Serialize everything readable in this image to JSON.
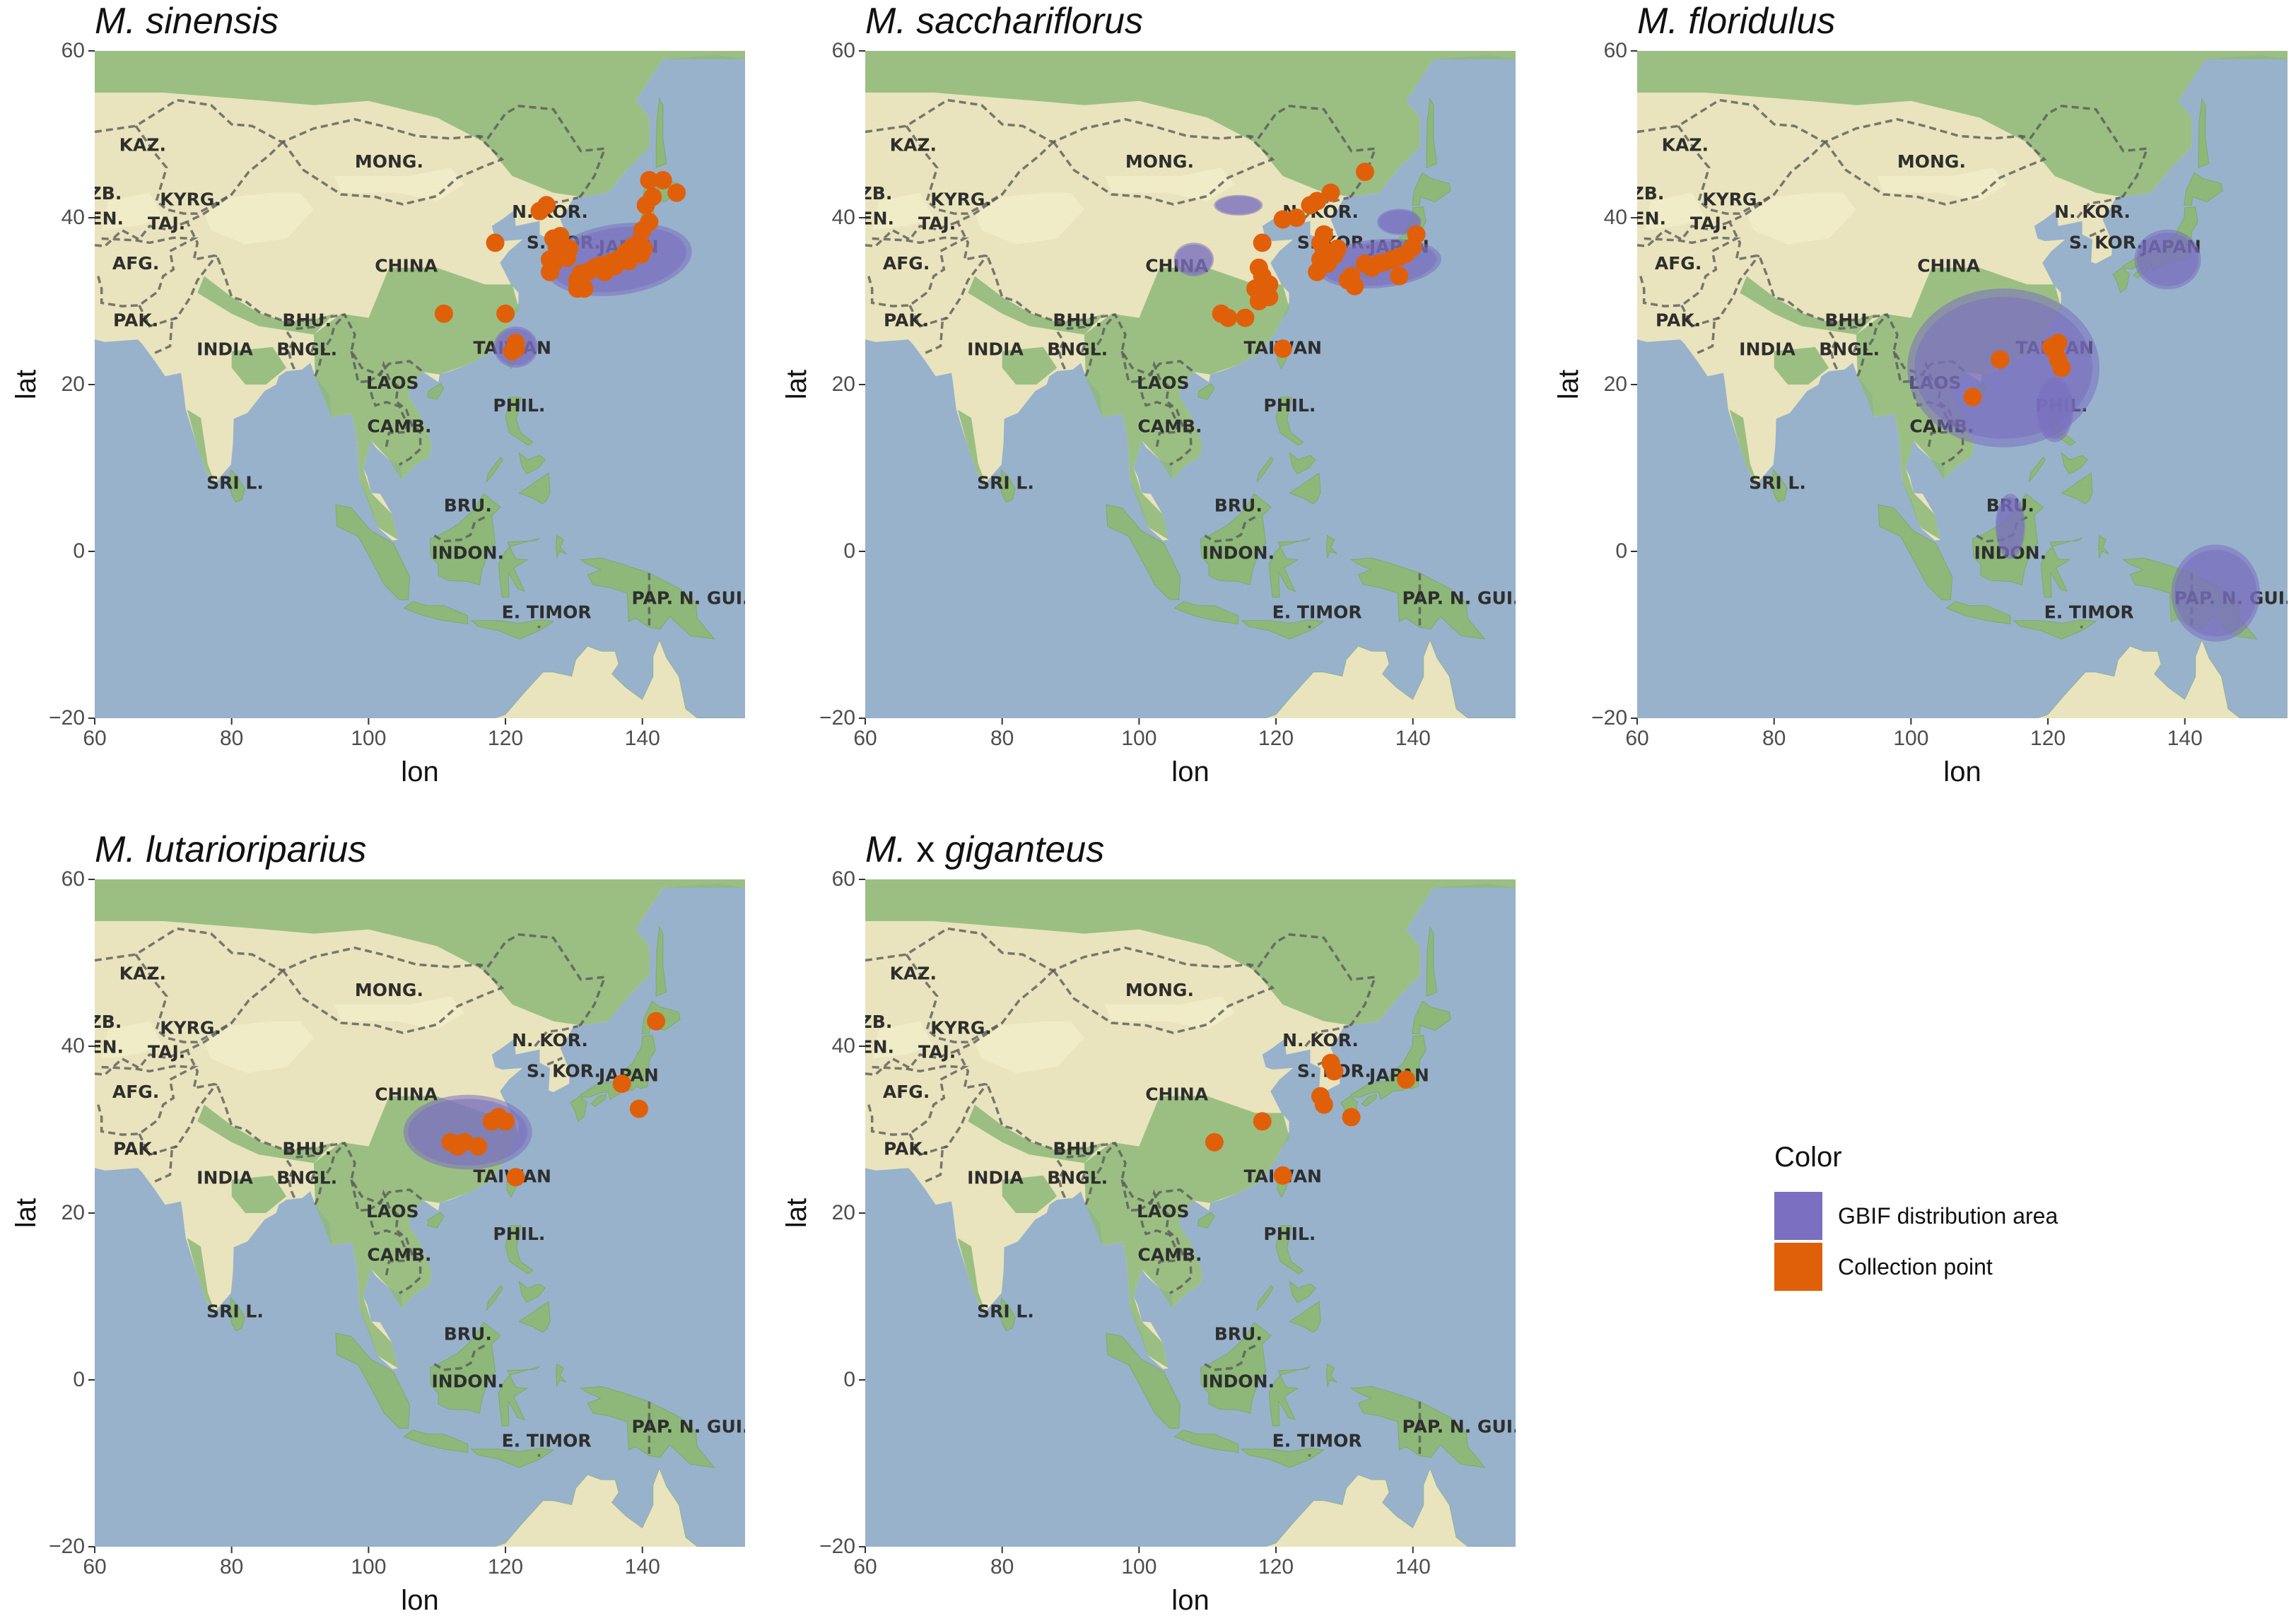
{
  "colors": {
    "ocean": "#98b2cc",
    "land": "#e9e4bd",
    "forest": "#8db879",
    "desert": "#f1ecc8",
    "border": "#5a5a5a",
    "gbif": "#7a6fc0",
    "collection": "#e0600a"
  },
  "axes": {
    "xlabel": "lon",
    "ylabel": "lat",
    "xticks": [
      60,
      80,
      100,
      120,
      140
    ],
    "yticks": [
      60,
      40,
      20,
      0,
      -20
    ],
    "xlim": [
      60,
      155
    ],
    "ylim": [
      -20,
      60
    ]
  },
  "country_labels": [
    {
      "text": "KAZ.",
      "lon": 67,
      "lat": 48
    },
    {
      "text": "MONG.",
      "lon": 103,
      "lat": 46
    },
    {
      "text": "UZB.",
      "lon": 60.5,
      "lat": 42.2
    },
    {
      "text": "KYRG.",
      "lon": 74,
      "lat": 41.5
    },
    {
      "text": "MEN.",
      "lon": 60.5,
      "lat": 39.2
    },
    {
      "text": "TAJ.",
      "lon": 70.5,
      "lat": 38.6
    },
    {
      "text": "AFG.",
      "lon": 66,
      "lat": 33.8
    },
    {
      "text": "CHINA",
      "lon": 105.5,
      "lat": 33.5
    },
    {
      "text": "N. KOR.",
      "lon": 126.5,
      "lat": 40
    },
    {
      "text": "S. KOR.",
      "lon": 128.5,
      "lat": 36.3
    },
    {
      "text": "JAPAN",
      "lon": 138,
      "lat": 35.8
    },
    {
      "text": "PAK.",
      "lon": 66,
      "lat": 27
    },
    {
      "text": "BHU.",
      "lon": 91,
      "lat": 27
    },
    {
      "text": "BNGL.",
      "lon": 91,
      "lat": 23.5
    },
    {
      "text": "INDIA",
      "lon": 79,
      "lat": 23.5
    },
    {
      "text": "TAIWAN",
      "lon": 121,
      "lat": 23.7
    },
    {
      "text": "LAOS",
      "lon": 103.5,
      "lat": 19.5
    },
    {
      "text": "PHIL.",
      "lon": 122,
      "lat": 16.8
    },
    {
      "text": "CAMB.",
      "lon": 104.5,
      "lat": 14.3
    },
    {
      "text": "SRI L.",
      "lon": 80.5,
      "lat": 7.5
    },
    {
      "text": "BRU.",
      "lon": 114.5,
      "lat": 4.8
    },
    {
      "text": "INDON.",
      "lon": 114.5,
      "lat": -0.9
    },
    {
      "text": "E. TIMOR",
      "lon": 126,
      "lat": -8
    },
    {
      "text": "PAP. N. GUI.",
      "lon": 147,
      "lat": -6.3
    }
  ],
  "panels": [
    {
      "title_italic_1": "M.",
      "title_upright": "",
      "title_italic_2": "sinensis",
      "gbif_areas": [
        {
          "lon": 136.5,
          "lat": 35,
          "rlon": 10,
          "rlat": 3.8,
          "rot": -8
        },
        {
          "lon": 121.5,
          "lat": 24.5,
          "rlon": 3,
          "rlat": 2.2,
          "rot": 0
        }
      ],
      "collection_points": [
        [
          141,
          44.5
        ],
        [
          143,
          44.5
        ],
        [
          145,
          43
        ],
        [
          141.5,
          42.5
        ],
        [
          140.5,
          41.5
        ],
        [
          141,
          39.5
        ],
        [
          140,
          38.5
        ],
        [
          139.5,
          37
        ],
        [
          138.5,
          36.5
        ],
        [
          137.5,
          35.8
        ],
        [
          136.5,
          35
        ],
        [
          135.5,
          34.7
        ],
        [
          134,
          34.3
        ],
        [
          133,
          34
        ],
        [
          132,
          33.5
        ],
        [
          131,
          33.3
        ],
        [
          130.5,
          32.5
        ],
        [
          131.5,
          31.5
        ],
        [
          130.5,
          31.5
        ],
        [
          134.5,
          33.5
        ],
        [
          136,
          34.2
        ],
        [
          138,
          34.8
        ],
        [
          139.8,
          35.6
        ],
        [
          140.2,
          36.3
        ],
        [
          127,
          37.5
        ],
        [
          127.5,
          36.5
        ],
        [
          128.5,
          35.8
        ],
        [
          129,
          35.2
        ],
        [
          126.5,
          35
        ],
        [
          127,
          34.5
        ],
        [
          126.5,
          33.5
        ],
        [
          129.3,
          36.3
        ],
        [
          128,
          37.8
        ],
        [
          125,
          40.8
        ],
        [
          126,
          41.5
        ],
        [
          118.5,
          37
        ],
        [
          111,
          28.5
        ],
        [
          120,
          28.5
        ],
        [
          121.5,
          25
        ],
        [
          121,
          24
        ],
        [
          121.5,
          24.3
        ]
      ]
    },
    {
      "title_italic_1": "M.",
      "title_upright": "",
      "title_italic_2": "sacchariflorus",
      "gbif_areas": [
        {
          "lon": 135,
          "lat": 34.5,
          "rlon": 8.5,
          "rlat": 2.6,
          "rot": -5
        },
        {
          "lon": 114.5,
          "lat": 41.5,
          "rlon": 3.3,
          "rlat": 1.1,
          "rot": 0
        },
        {
          "lon": 138,
          "lat": 39.5,
          "rlon": 3,
          "rlat": 1.4,
          "rot": 0
        },
        {
          "lon": 108,
          "lat": 35,
          "rlon": 2.7,
          "rlat": 1.8,
          "rot": 0
        }
      ],
      "collection_points": [
        [
          133,
          45.5
        ],
        [
          128,
          43
        ],
        [
          126,
          42
        ],
        [
          125,
          41.5
        ],
        [
          123,
          40
        ],
        [
          127,
          38
        ],
        [
          126.5,
          37
        ],
        [
          127,
          36
        ],
        [
          126.5,
          35
        ],
        [
          128.5,
          35.5
        ],
        [
          129,
          36.3
        ],
        [
          127.5,
          34.5
        ],
        [
          126,
          33.5
        ],
        [
          133,
          34.5
        ],
        [
          134,
          34
        ],
        [
          135,
          34.5
        ],
        [
          136,
          34.7
        ],
        [
          137,
          35
        ],
        [
          138,
          35.3
        ],
        [
          139,
          35.7
        ],
        [
          140,
          36.5
        ],
        [
          140.5,
          38
        ],
        [
          131,
          33
        ],
        [
          131.5,
          31.8
        ],
        [
          130.5,
          32.5
        ],
        [
          138,
          33
        ],
        [
          121,
          39.8
        ],
        [
          118,
          37
        ],
        [
          117.5,
          34
        ],
        [
          118,
          33
        ],
        [
          119,
          32
        ],
        [
          117,
          31.5
        ],
        [
          118,
          30.8
        ],
        [
          117.5,
          30
        ],
        [
          119,
          30.5
        ],
        [
          112,
          28.5
        ],
        [
          113,
          28
        ],
        [
          115.5,
          28
        ],
        [
          121,
          24.3
        ]
      ]
    },
    {
      "title_italic_1": "M.",
      "title_upright": "",
      "title_italic_2": "floridulus",
      "gbif_areas": [
        {
          "lon": 113.5,
          "lat": 22,
          "rlon": 13,
          "rlat": 8.5,
          "rot": 0
        },
        {
          "lon": 121,
          "lat": 17,
          "rlon": 2.5,
          "rlat": 3.5,
          "rot": 0
        },
        {
          "lon": 137.5,
          "lat": 35,
          "rlon": 4.5,
          "rlat": 3.2,
          "rot": 0
        },
        {
          "lon": 114.5,
          "lat": 3,
          "rlon": 2,
          "rlat": 3.5,
          "rot": 0
        },
        {
          "lon": 144.5,
          "lat": -5,
          "rlon": 6,
          "rlat": 5.2,
          "rot": 0
        }
      ],
      "collection_points": [
        [
          113,
          23
        ],
        [
          109,
          18.5
        ],
        [
          121.5,
          25
        ],
        [
          121,
          24
        ],
        [
          121.5,
          23
        ],
        [
          122,
          22
        ],
        [
          120.5,
          24.5
        ]
      ]
    },
    {
      "title_italic_1": "M.",
      "title_upright": "",
      "title_italic_2": "lutarioriparius",
      "gbif_areas": [
        {
          "lon": 114.5,
          "lat": 29.7,
          "rlon": 8.7,
          "rlat": 4,
          "rot": 0
        }
      ],
      "collection_points": [
        [
          112,
          28.5
        ],
        [
          113,
          28
        ],
        [
          114,
          28.5
        ],
        [
          116,
          28
        ],
        [
          118,
          31
        ],
        [
          119,
          31.5
        ],
        [
          120,
          31
        ],
        [
          121.5,
          24.3
        ],
        [
          137,
          35.5
        ],
        [
          139.5,
          32.5
        ],
        [
          142,
          43
        ]
      ]
    },
    {
      "title_italic_1": "M.",
      "title_upright": "x",
      "title_italic_2": "giganteus",
      "gbif_areas": [],
      "collection_points": [
        [
          128,
          38
        ],
        [
          128.5,
          37
        ],
        [
          126.5,
          34
        ],
        [
          127,
          33
        ],
        [
          131,
          31.5
        ],
        [
          139,
          36
        ],
        [
          118,
          31
        ],
        [
          111,
          28.5
        ],
        [
          121,
          24.5
        ]
      ]
    }
  ],
  "legend": {
    "title": "Color",
    "items": [
      {
        "key": "gbif",
        "label": "GBIF distribution area"
      },
      {
        "key": "collection",
        "label": "Collection point"
      }
    ]
  }
}
